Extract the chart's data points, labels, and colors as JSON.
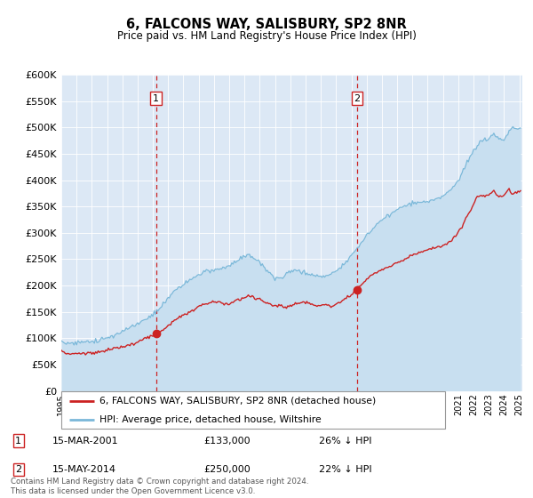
{
  "title": "6, FALCONS WAY, SALISBURY, SP2 8NR",
  "subtitle": "Price paid vs. HM Land Registry's House Price Index (HPI)",
  "ytick_values": [
    0,
    50000,
    100000,
    150000,
    200000,
    250000,
    300000,
    350000,
    400000,
    450000,
    500000,
    550000,
    600000
  ],
  "plot_bg_color": "#dce8f5",
  "hpi_color": "#7ab8d9",
  "hpi_fill_color": "#c8dff0",
  "price_color": "#cc2222",
  "vline_color": "#cc2222",
  "marker1_year": 2001.21,
  "marker2_year": 2014.37,
  "legend_line1": "6, FALCONS WAY, SALISBURY, SP2 8NR (detached house)",
  "legend_line2": "HPI: Average price, detached house, Wiltshire",
  "annotation1_date": "15-MAR-2001",
  "annotation1_price": "£133,000",
  "annotation1_hpi": "26% ↓ HPI",
  "annotation2_date": "15-MAY-2014",
  "annotation2_price": "£250,000",
  "annotation2_hpi": "22% ↓ HPI",
  "footnote": "Contains HM Land Registry data © Crown copyright and database right 2024.\nThis data is licensed under the Open Government Licence v3.0."
}
